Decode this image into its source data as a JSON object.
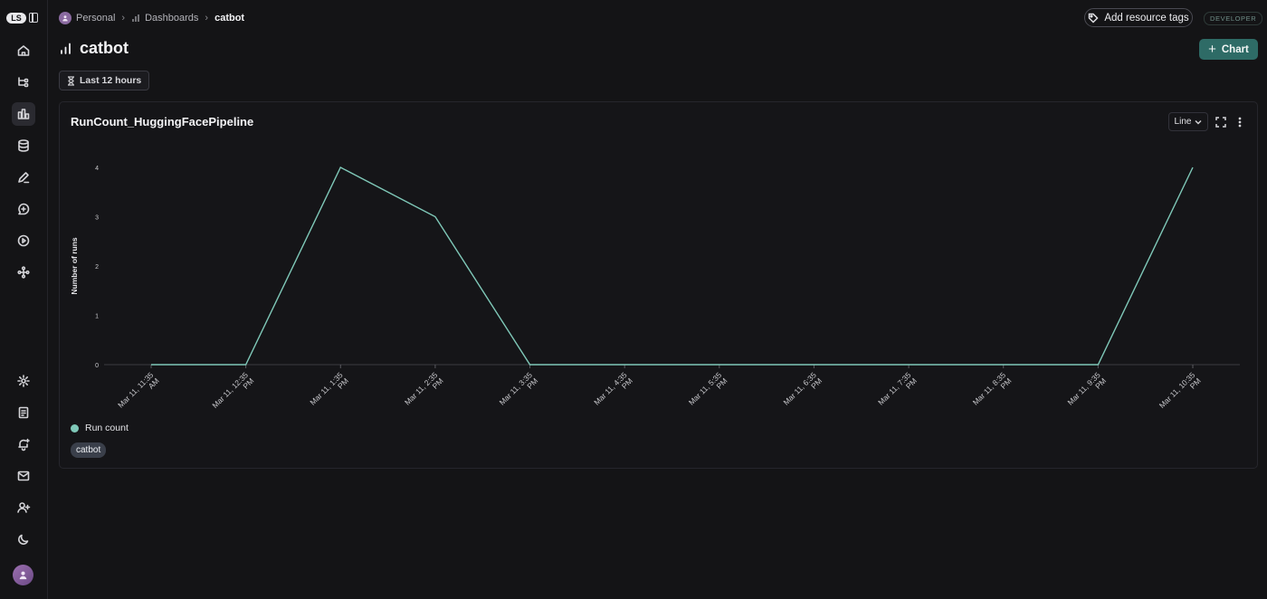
{
  "sidebar": {
    "logo_text": "LS",
    "items": [
      {
        "icon": "home-icon"
      },
      {
        "icon": "flow-icon"
      },
      {
        "icon": "dashboard-icon",
        "active": true
      },
      {
        "icon": "database-icon"
      },
      {
        "icon": "pen-icon"
      },
      {
        "icon": "chat-plus-icon"
      },
      {
        "icon": "play-circle-icon"
      },
      {
        "icon": "graph-icon"
      }
    ],
    "bottom_items": [
      {
        "icon": "settings-icon"
      },
      {
        "icon": "document-icon"
      },
      {
        "icon": "bell-plus-icon"
      },
      {
        "icon": "mail-icon"
      },
      {
        "icon": "user-plus-icon"
      },
      {
        "icon": "moon-icon"
      }
    ]
  },
  "breadcrumb": {
    "workspace": "Personal",
    "section": "Dashboards",
    "current": "catbot"
  },
  "header": {
    "add_tags_label": "Add resource tags",
    "env_badge": "DEVELOPER",
    "title": "catbot",
    "add_chart_label": "Chart",
    "time_filter": "Last 12 hours"
  },
  "chart_card": {
    "title": "RunCount_HuggingFacePipeline",
    "type_select": "Line"
  },
  "chart_data": {
    "type": "line",
    "title": "RunCount_HuggingFacePipeline",
    "ylabel": "Number of runs",
    "xlabel": "",
    "ylim": [
      0,
      4
    ],
    "yticks": [
      0,
      1,
      2,
      3,
      4
    ],
    "categories": [
      "Mar 11, 11:35 AM",
      "Mar 11, 12:35 PM",
      "Mar 11, 1:35 PM",
      "Mar 11, 2:35 PM",
      "Mar 11, 3:35 PM",
      "Mar 11, 4:35 PM",
      "Mar 11, 5:35 PM",
      "Mar 11, 6:35 PM",
      "Mar 11, 7:35 PM",
      "Mar 11, 8:35 PM",
      "Mar 11, 9:35 PM",
      "Mar 11, 10:35 PM"
    ],
    "series": [
      {
        "name": "Run count",
        "color": "#7fc8b8",
        "values": [
          0,
          0,
          4,
          3,
          0,
          0,
          0,
          0,
          0,
          0,
          0,
          4
        ]
      }
    ],
    "grid": false,
    "legend": "bottom-left"
  },
  "series_filter_chip": "catbot"
}
